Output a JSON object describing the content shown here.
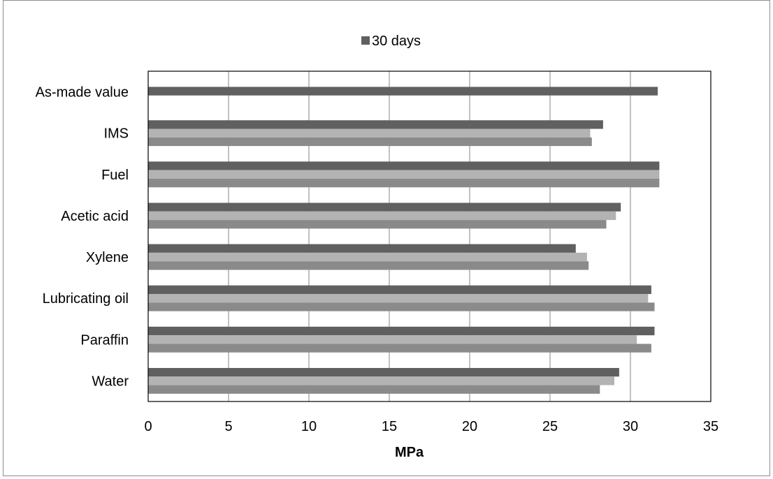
{
  "chart_data": {
    "type": "bar",
    "orientation": "horizontal",
    "title": "",
    "xlabel": "MPa",
    "ylabel": "",
    "xlim": [
      0,
      35
    ],
    "x_ticks": [
      "0",
      "5",
      "10",
      "15",
      "20",
      "25",
      "30",
      "35"
    ],
    "grid": "vertical",
    "legend_position": "top",
    "categories": [
      "As-made value",
      "IMS",
      "Fuel",
      "Acetic acid",
      "Xylene",
      "Lubricating oil",
      "Paraffin",
      "Water"
    ],
    "series": [
      {
        "name": "30 days",
        "color": "#606060",
        "values": [
          31.7,
          28.3,
          31.8,
          29.4,
          26.6,
          31.3,
          31.5,
          29.3
        ]
      },
      {
        "color": "#b3b3b3",
        "values": [
          null,
          27.5,
          31.8,
          29.1,
          27.3,
          31.1,
          30.4,
          29.0
        ]
      },
      {
        "color": "#8a8a8a",
        "values": [
          null,
          27.6,
          31.8,
          28.5,
          27.4,
          31.5,
          31.3,
          28.1
        ]
      }
    ]
  }
}
